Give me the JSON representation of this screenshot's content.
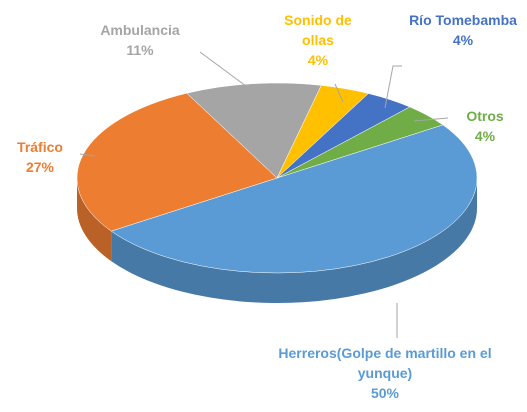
{
  "chart_data": {
    "type": "pie",
    "categories": [
      "Herreros(Golpe de martillo en el yunque)",
      "Tráfico",
      "Ambulancia",
      "Sonido de ollas",
      "Río Tomebamba",
      "Otros"
    ],
    "values": [
      50,
      27,
      11,
      4,
      4,
      4
    ],
    "value_labels": [
      "50%",
      "27%",
      "11%",
      "4%",
      "4%",
      "4%"
    ],
    "colors": [
      "#5b9bd5",
      "#ed7d31",
      "#a5a5a5",
      "#ffc000",
      "#4472c4",
      "#70ad47"
    ]
  }
}
